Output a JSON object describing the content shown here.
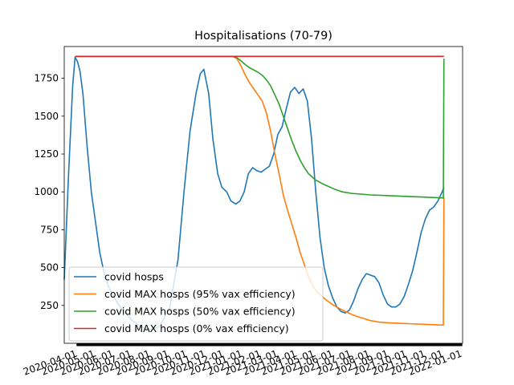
{
  "chart_data": {
    "type": "line",
    "title": "Hospitalisations (70-79)",
    "xlabel": "",
    "ylabel": "",
    "x_range": [
      "2020-03-10",
      "2022-01-01"
    ],
    "ylim": [
      0,
      1960
    ],
    "y_ticks": [
      250,
      500,
      750,
      1000,
      1250,
      1500,
      1750
    ],
    "x_tick_labels": [
      "2020-04-01",
      "2020-05-01",
      "2020-06-01",
      "2020-07-01",
      "2020-08-01",
      "2020-09-01",
      "2020-10-01",
      "2020-11-01",
      "2020-12-01",
      "2021-01-01",
      "2021-02-01",
      "2021-03-01",
      "2021-04-01",
      "2021-05-01",
      "2021-06-01",
      "2021-07-01",
      "2021-08-01",
      "2021-09-01",
      "2021-10-01",
      "2021-11-01",
      "2021-12-01",
      "2022-01-01"
    ],
    "grid": false,
    "legend_position": "lower-left",
    "series": [
      {
        "name": "covid hosps",
        "color": "#1f77b4",
        "points": [
          [
            "2020-03-10",
            420
          ],
          [
            "2020-03-17",
            1100
          ],
          [
            "2020-03-24",
            1700
          ],
          [
            "2020-03-28",
            1890
          ],
          [
            "2020-04-01",
            1860
          ],
          [
            "2020-04-05",
            1800
          ],
          [
            "2020-04-10",
            1650
          ],
          [
            "2020-04-17",
            1300
          ],
          [
            "2020-04-24",
            1000
          ],
          [
            "2020-05-01",
            800
          ],
          [
            "2020-05-08",
            600
          ],
          [
            "2020-05-15",
            470
          ],
          [
            "2020-05-22",
            380
          ],
          [
            "2020-06-01",
            300
          ],
          [
            "2020-06-15",
            220
          ],
          [
            "2020-07-01",
            150
          ],
          [
            "2020-07-15",
            110
          ],
          [
            "2020-08-01",
            90
          ],
          [
            "2020-08-15",
            110
          ],
          [
            "2020-09-01",
            230
          ],
          [
            "2020-09-15",
            550
          ],
          [
            "2020-09-25",
            1000
          ],
          [
            "2020-10-05",
            1400
          ],
          [
            "2020-10-15",
            1650
          ],
          [
            "2020-10-22",
            1780
          ],
          [
            "2020-10-28",
            1810
          ],
          [
            "2020-11-05",
            1650
          ],
          [
            "2020-11-12",
            1350
          ],
          [
            "2020-11-20",
            1120
          ],
          [
            "2020-11-27",
            1030
          ],
          [
            "2020-12-05",
            1000
          ],
          [
            "2020-12-12",
            940
          ],
          [
            "2020-12-20",
            920
          ],
          [
            "2020-12-27",
            940
          ],
          [
            "2021-01-03",
            1000
          ],
          [
            "2021-01-10",
            1120
          ],
          [
            "2021-01-17",
            1160
          ],
          [
            "2021-01-24",
            1140
          ],
          [
            "2021-01-31",
            1130
          ],
          [
            "2021-02-07",
            1150
          ],
          [
            "2021-02-14",
            1170
          ],
          [
            "2021-02-21",
            1250
          ],
          [
            "2021-02-28",
            1380
          ],
          [
            "2021-03-07",
            1430
          ],
          [
            "2021-03-14",
            1550
          ],
          [
            "2021-03-21",
            1660
          ],
          [
            "2021-03-28",
            1690
          ],
          [
            "2021-04-04",
            1650
          ],
          [
            "2021-04-11",
            1680
          ],
          [
            "2021-04-18",
            1600
          ],
          [
            "2021-04-25",
            1350
          ],
          [
            "2021-05-02",
            1000
          ],
          [
            "2021-05-09",
            700
          ],
          [
            "2021-05-16",
            500
          ],
          [
            "2021-05-23",
            380
          ],
          [
            "2021-05-30",
            300
          ],
          [
            "2021-06-06",
            240
          ],
          [
            "2021-06-13",
            210
          ],
          [
            "2021-06-20",
            200
          ],
          [
            "2021-06-27",
            220
          ],
          [
            "2021-07-04",
            280
          ],
          [
            "2021-07-11",
            360
          ],
          [
            "2021-07-18",
            420
          ],
          [
            "2021-07-25",
            460
          ],
          [
            "2021-08-01",
            450
          ],
          [
            "2021-08-08",
            440
          ],
          [
            "2021-08-15",
            400
          ],
          [
            "2021-08-22",
            320
          ],
          [
            "2021-08-29",
            260
          ],
          [
            "2021-09-05",
            240
          ],
          [
            "2021-09-12",
            240
          ],
          [
            "2021-09-19",
            260
          ],
          [
            "2021-09-26",
            310
          ],
          [
            "2021-10-03",
            390
          ],
          [
            "2021-10-10",
            480
          ],
          [
            "2021-10-17",
            600
          ],
          [
            "2021-10-24",
            730
          ],
          [
            "2021-10-31",
            820
          ],
          [
            "2021-11-07",
            880
          ],
          [
            "2021-11-14",
            900
          ],
          [
            "2021-11-21",
            940
          ],
          [
            "2021-11-28",
            1000
          ],
          [
            "2021-12-01",
            1030
          ]
        ]
      },
      {
        "name": "covid MAX hosps (95% vax efficiency)",
        "color": "#ff7f0e",
        "points": [
          [
            "2020-03-28",
            1895
          ],
          [
            "2020-12-15",
            1895
          ],
          [
            "2020-12-22",
            1880
          ],
          [
            "2020-12-29",
            1830
          ],
          [
            "2021-01-05",
            1770
          ],
          [
            "2021-01-12",
            1720
          ],
          [
            "2021-01-19",
            1680
          ],
          [
            "2021-01-26",
            1640
          ],
          [
            "2021-02-02",
            1600
          ],
          [
            "2021-02-09",
            1520
          ],
          [
            "2021-02-16",
            1400
          ],
          [
            "2021-02-23",
            1250
          ],
          [
            "2021-03-02",
            1120
          ],
          [
            "2021-03-09",
            980
          ],
          [
            "2021-03-16",
            880
          ],
          [
            "2021-03-23",
            790
          ],
          [
            "2021-03-30",
            700
          ],
          [
            "2021-04-06",
            600
          ],
          [
            "2021-04-13",
            520
          ],
          [
            "2021-04-20",
            440
          ],
          [
            "2021-04-27",
            380
          ],
          [
            "2021-05-04",
            340
          ],
          [
            "2021-05-18",
            290
          ],
          [
            "2021-06-01",
            250
          ],
          [
            "2021-06-15",
            220
          ],
          [
            "2021-07-01",
            190
          ],
          [
            "2021-07-15",
            170
          ],
          [
            "2021-08-01",
            150
          ],
          [
            "2021-08-15",
            140
          ],
          [
            "2021-09-01",
            135
          ],
          [
            "2021-10-01",
            130
          ],
          [
            "2021-11-01",
            125
          ],
          [
            "2021-11-30",
            120
          ],
          [
            "2021-12-01",
            965
          ]
        ]
      },
      {
        "name": "covid MAX hosps (50% vax efficiency)",
        "color": "#2ca02c",
        "points": [
          [
            "2020-03-28",
            1895
          ],
          [
            "2020-12-15",
            1895
          ],
          [
            "2020-12-22",
            1885
          ],
          [
            "2020-12-29",
            1865
          ],
          [
            "2021-01-05",
            1840
          ],
          [
            "2021-01-12",
            1820
          ],
          [
            "2021-01-19",
            1805
          ],
          [
            "2021-01-26",
            1790
          ],
          [
            "2021-02-02",
            1770
          ],
          [
            "2021-02-09",
            1740
          ],
          [
            "2021-02-16",
            1700
          ],
          [
            "2021-02-23",
            1640
          ],
          [
            "2021-03-02",
            1580
          ],
          [
            "2021-03-09",
            1500
          ],
          [
            "2021-03-16",
            1420
          ],
          [
            "2021-03-23",
            1340
          ],
          [
            "2021-03-30",
            1270
          ],
          [
            "2021-04-06",
            1210
          ],
          [
            "2021-04-13",
            1160
          ],
          [
            "2021-04-20",
            1120
          ],
          [
            "2021-05-01",
            1080
          ],
          [
            "2021-05-15",
            1050
          ],
          [
            "2021-06-01",
            1020
          ],
          [
            "2021-06-15",
            1000
          ],
          [
            "2021-07-01",
            990
          ],
          [
            "2021-08-01",
            980
          ],
          [
            "2021-09-01",
            975
          ],
          [
            "2021-10-01",
            970
          ],
          [
            "2021-11-01",
            965
          ],
          [
            "2021-11-30",
            960
          ],
          [
            "2021-12-01",
            1880
          ]
        ]
      },
      {
        "name": "covid MAX hosps (0% vax efficiency)",
        "color": "#d62728",
        "points": [
          [
            "2020-03-28",
            1895
          ],
          [
            "2021-11-30",
            1895
          ],
          [
            "2021-12-01",
            1895
          ]
        ]
      }
    ]
  }
}
